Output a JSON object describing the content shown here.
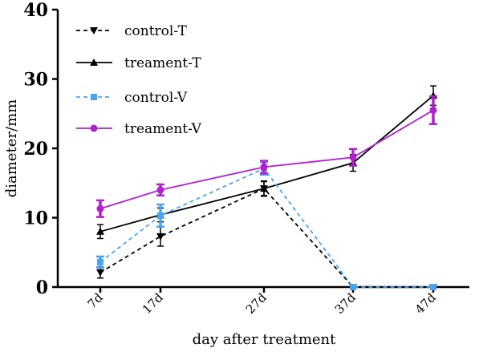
{
  "chart_data": {
    "type": "line",
    "title": "",
    "xlabel": "day after treatment",
    "ylabel": "diameter/mm",
    "categories": [
      "7d",
      "17d",
      "27d",
      "37d",
      "47d"
    ],
    "ylim": [
      0,
      40
    ],
    "yticks": [
      "0",
      "10",
      "20",
      "30",
      "40"
    ],
    "grid": false,
    "legend_position": "top-left",
    "series": [
      {
        "name": "control-T",
        "color": "#000000",
        "dash": "dashed",
        "marker": "triangle-down",
        "values": [
          2.1,
          7.3,
          14.2,
          0,
          0
        ],
        "errors": [
          0.8,
          1.4,
          1.0,
          0,
          0
        ]
      },
      {
        "name": "treament-T",
        "color": "#000000",
        "dash": "solid",
        "marker": "triangle-up",
        "values": [
          8.0,
          10.4,
          14.2,
          17.9,
          27.6
        ],
        "errors": [
          1.0,
          1.0,
          1.1,
          1.2,
          1.4
        ]
      },
      {
        "name": "control-V",
        "color": "#4aa3ef",
        "dash": "dashed",
        "marker": "square",
        "values": [
          3.6,
          10.3,
          17.1,
          0,
          0
        ],
        "errors": [
          0.8,
          1.6,
          0.9,
          0,
          0
        ]
      },
      {
        "name": "treament-V",
        "color": "#b020d0",
        "dash": "solid",
        "marker": "circle",
        "values": [
          11.3,
          14.0,
          17.3,
          18.7,
          25.5
        ],
        "errors": [
          1.2,
          0.8,
          0.9,
          1.2,
          2.0
        ]
      }
    ]
  }
}
